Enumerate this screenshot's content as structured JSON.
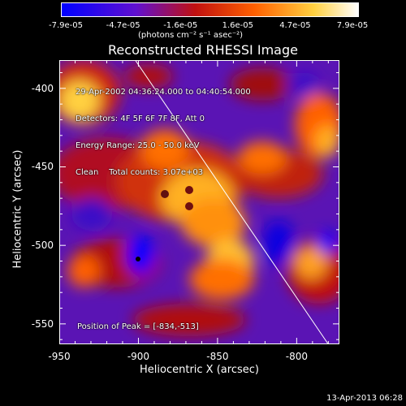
{
  "colorbar": {
    "ticks": [
      "-7.9e-05",
      "-4.7e-05",
      "-1.6e-05",
      "1.6e-05",
      "4.7e-05",
      "7.9e-05"
    ],
    "units": "(photons cm⁻² s⁻¹ asec⁻²)",
    "colors": [
      "#0000ff",
      "#7a18c8",
      "#c01010",
      "#ff6000",
      "#ffd040",
      "#ffffff"
    ]
  },
  "plot": {
    "title": "Reconstructed RHESSI Image",
    "xlabel": "Heliocentric X (arcsec)",
    "ylabel": "Heliocentric Y (arcsec)",
    "x_ticks": [
      "-950",
      "-900",
      "-850",
      "-800"
    ],
    "y_ticks": [
      "-400",
      "-450",
      "-500",
      "-550"
    ],
    "xlim": [
      -950,
      -773
    ],
    "ylim": [
      -563,
      -382
    ]
  },
  "info": {
    "time_range": "29-Apr-2002 04:36:24.000 to 04:40:54.000",
    "detectors": "Detectors: 4F 5F 6F 7F 8F, Att 0",
    "energy": "Energy Range: 25.0 - 50.0 keV",
    "method": "Clean    Total counts: 3.07e+03",
    "peak": "Position of Peak = [-834,-513]"
  },
  "footer": {
    "timestamp": "13-Apr-2013 06:28"
  },
  "image": {
    "colormap": [
      "#0000ff",
      "#7a18c8",
      "#c01010",
      "#ff6000",
      "#ffd040",
      "#ffffff"
    ],
    "limb_line": {
      "from": [
        -902,
        -382
      ],
      "to": [
        -780,
        -563
      ]
    }
  }
}
